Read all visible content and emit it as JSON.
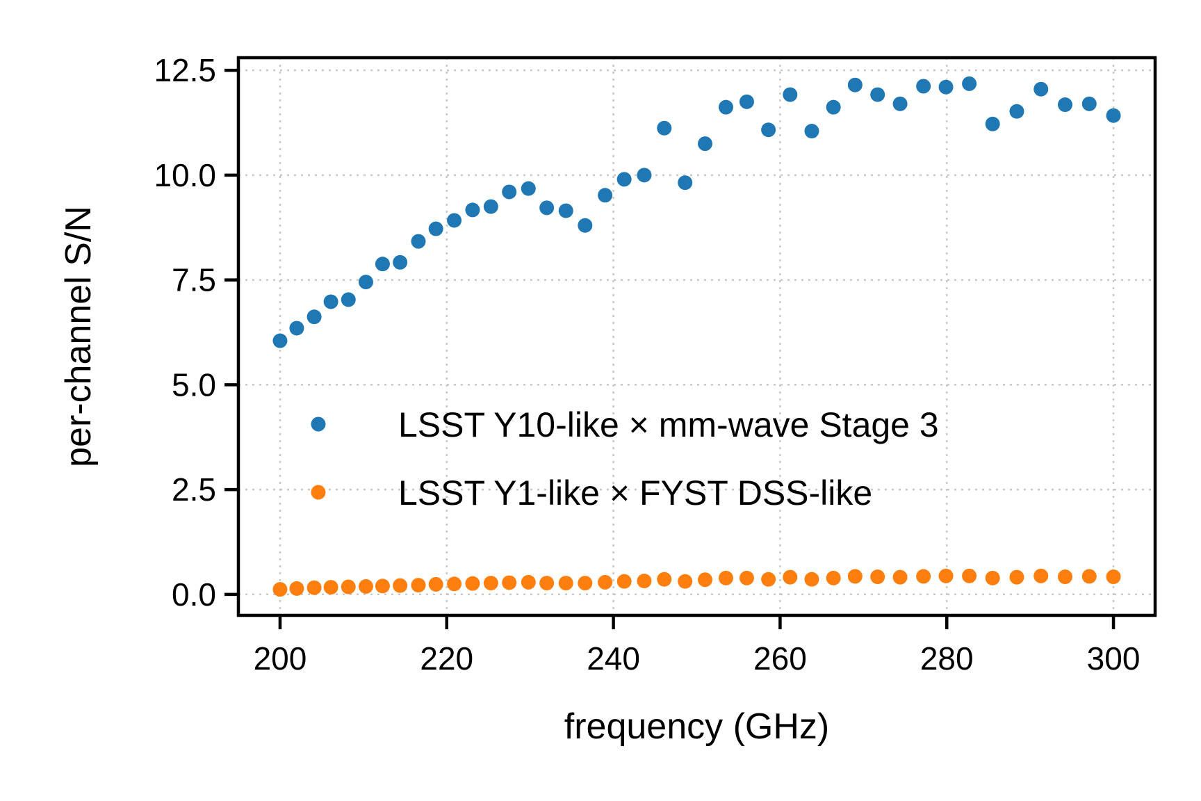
{
  "chart_data": {
    "type": "scatter",
    "title": "",
    "xlabel": "frequency (GHz)",
    "ylabel": "per-channel S/N",
    "xlim": [
      195,
      305
    ],
    "ylim": [
      -0.5,
      12.8
    ],
    "xticks": [
      200,
      220,
      240,
      260,
      280,
      300
    ],
    "xtick_labels": [
      "200",
      "220",
      "240",
      "260",
      "280",
      "300"
    ],
    "yticks": [
      0.0,
      2.5,
      5.0,
      7.5,
      10.0,
      12.5
    ],
    "ytick_labels": [
      "0.0",
      "2.5",
      "5.0",
      "7.5",
      "10.0",
      "12.5"
    ],
    "grid": true,
    "legend_position": "center-right",
    "x": [
      200.0,
      202.0,
      204.1,
      206.1,
      208.2,
      210.3,
      212.3,
      214.4,
      216.6,
      218.7,
      220.9,
      223.1,
      225.3,
      227.5,
      229.8,
      232.0,
      234.3,
      236.6,
      239.0,
      241.3,
      243.7,
      246.1,
      248.6,
      251.0,
      253.5,
      256.0,
      258.6,
      261.2,
      263.8,
      266.4,
      269.0,
      271.7,
      274.4,
      277.2,
      279.9,
      282.7,
      285.5,
      288.4,
      291.3,
      294.2,
      297.1,
      300.0
    ],
    "series": [
      {
        "name": "LSST Y10-like × mm-wave Stage 3",
        "color": "#1f77b4",
        "values": [
          6.05,
          6.35,
          6.62,
          6.98,
          7.03,
          7.45,
          7.88,
          7.92,
          8.42,
          8.72,
          8.92,
          9.17,
          9.25,
          9.6,
          9.68,
          9.22,
          9.15,
          8.8,
          9.52,
          9.9,
          10.0,
          11.12,
          9.82,
          10.75,
          11.62,
          11.75,
          11.08,
          11.92,
          11.05,
          11.62,
          12.15,
          11.92,
          11.7,
          12.12,
          12.1,
          12.18,
          11.22,
          11.52,
          12.05,
          11.68,
          11.7,
          11.42
        ]
      },
      {
        "name": "LSST Y1-like × FYST DSS-like",
        "color": "#ff7f0e",
        "values": [
          0.12,
          0.14,
          0.16,
          0.17,
          0.18,
          0.19,
          0.2,
          0.21,
          0.22,
          0.24,
          0.25,
          0.26,
          0.27,
          0.28,
          0.29,
          0.27,
          0.27,
          0.27,
          0.29,
          0.31,
          0.32,
          0.36,
          0.31,
          0.35,
          0.39,
          0.39,
          0.36,
          0.41,
          0.36,
          0.39,
          0.43,
          0.42,
          0.41,
          0.43,
          0.44,
          0.44,
          0.39,
          0.41,
          0.44,
          0.42,
          0.43,
          0.42
        ]
      }
    ]
  }
}
